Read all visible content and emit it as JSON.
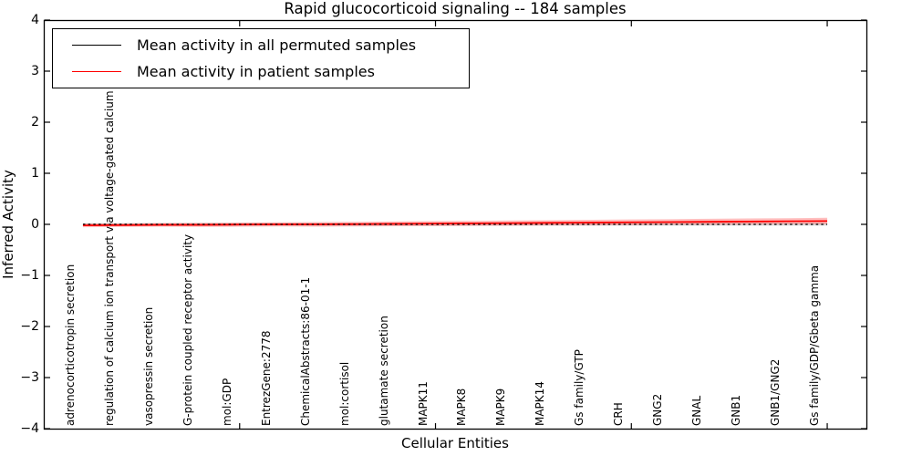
{
  "title": "Rapid glucocorticoid signaling -- 184 samples",
  "axes": {
    "ylabel": "Inferred Activity",
    "xlabel": "Cellular Entities",
    "ytick_labels": [
      "4",
      "3",
      "2",
      "1",
      "0",
      "−1",
      "−2",
      "−3",
      "−4"
    ],
    "ytick_values": [
      4,
      3,
      2,
      1,
      0,
      -1,
      -2,
      -3,
      -4
    ]
  },
  "legend": {
    "items": [
      {
        "label": "Mean activity in all permuted samples",
        "color": "#000000"
      },
      {
        "label": "Mean activity in patient samples",
        "color": "#ff0000"
      }
    ]
  },
  "chart_data": {
    "type": "line",
    "title": "Rapid glucocorticoid signaling -- 184 samples",
    "xlabel": "Cellular Entities",
    "ylabel": "Inferred Activity",
    "ylim": [
      -4,
      4
    ],
    "xlim": [
      0,
      21
    ],
    "grid": false,
    "legend_position": "upper left",
    "yticks": [
      4,
      3,
      2,
      1,
      0,
      -1,
      -2,
      -3,
      -4
    ],
    "xticks_major_values": [
      5,
      10,
      15,
      20
    ],
    "x": [
      1,
      2,
      3,
      4,
      5,
      6,
      7,
      8,
      9,
      10,
      11,
      12,
      13,
      14,
      15,
      16,
      17,
      18,
      19,
      20
    ],
    "categories": [
      "adrenocorticotropin secretion",
      "regulation of calcium ion transport via voltage-gated calcium channels",
      "vasopressin secretion",
      "G-protein coupled receptor activity",
      "mol:GDP",
      "EntrezGene:2778",
      "ChemicalAbstracts:86-01-1",
      "mol:cortisol",
      "glutamate secretion",
      "MAPK11",
      "MAPK8",
      "MAPK9",
      "MAPK14",
      "Gs family/GTP",
      "CRH",
      "GNG2",
      "GNAL",
      "GNB1",
      "GNB1/GNG2",
      "Gs family/GDP/Gbeta gamma"
    ],
    "series": [
      {
        "name": "Mean activity in all permuted samples",
        "color": "#000000",
        "line_style": "dashed",
        "values": [
          0,
          0,
          0,
          0,
          0,
          0,
          0,
          0,
          0,
          0,
          0,
          0,
          0,
          0,
          0,
          0,
          0,
          0,
          0,
          0
        ],
        "band_halfwidth": [
          0.025,
          0.025,
          0.025,
          0.025,
          0.025,
          0.025,
          0.025,
          0.025,
          0.025,
          0.025,
          0.025,
          0.025,
          0.025,
          0.025,
          0.025,
          0.025,
          0.025,
          0.025,
          0.025,
          0.025
        ]
      },
      {
        "name": "Mean activity in patient samples",
        "color": "#ff0000",
        "line_style": "solid",
        "values": [
          -0.02,
          -0.015,
          -0.01,
          -0.01,
          -0.005,
          0,
          0,
          0.005,
          0.01,
          0.015,
          0.02,
          0.025,
          0.03,
          0.035,
          0.04,
          0.045,
          0.05,
          0.055,
          0.06,
          0.065
        ],
        "band_halfwidth": [
          0.035,
          0.035,
          0.035,
          0.04,
          0.04,
          0.04,
          0.045,
          0.045,
          0.045,
          0.05,
          0.05,
          0.05,
          0.05,
          0.055,
          0.055,
          0.055,
          0.06,
          0.06,
          0.06,
          0.065
        ]
      }
    ]
  }
}
